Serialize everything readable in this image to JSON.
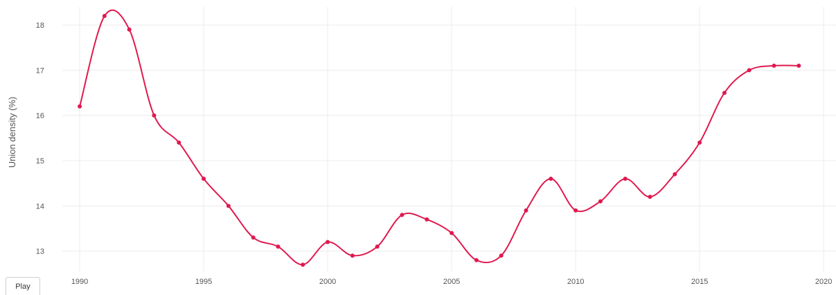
{
  "controls": {
    "play_label": "Play"
  },
  "chart_data": {
    "type": "line",
    "title": "",
    "xlabel": "",
    "ylabel": "Union density (%)",
    "xlim": [
      1989.3,
      2020.5
    ],
    "ylim": [
      12.55,
      18.4
    ],
    "x_ticks": [
      1990,
      1995,
      2000,
      2005,
      2010,
      2015,
      2020
    ],
    "y_ticks": [
      13,
      14,
      15,
      16,
      17,
      18
    ],
    "grid": true,
    "line_shape": "spline",
    "line_color": "#e0194f",
    "series": [
      {
        "x": [
          1990,
          1991,
          1992,
          1993,
          1994,
          1995,
          1996,
          1997,
          1998,
          1999,
          2000,
          2001,
          2002,
          2003,
          2004,
          2005,
          2006,
          2007,
          2008,
          2009,
          2010,
          2011,
          2012,
          2013,
          2014,
          2015,
          2016,
          2017,
          2018,
          2019
        ],
        "values": [
          16.2,
          18.2,
          17.9,
          16.0,
          15.4,
          14.6,
          14.0,
          13.3,
          13.1,
          12.7,
          13.2,
          12.9,
          13.1,
          13.8,
          13.7,
          13.4,
          12.8,
          12.9,
          13.9,
          14.6,
          13.9,
          14.1,
          14.6,
          14.2,
          14.7,
          15.4,
          16.5,
          17.0,
          17.1,
          17.1
        ]
      }
    ]
  }
}
